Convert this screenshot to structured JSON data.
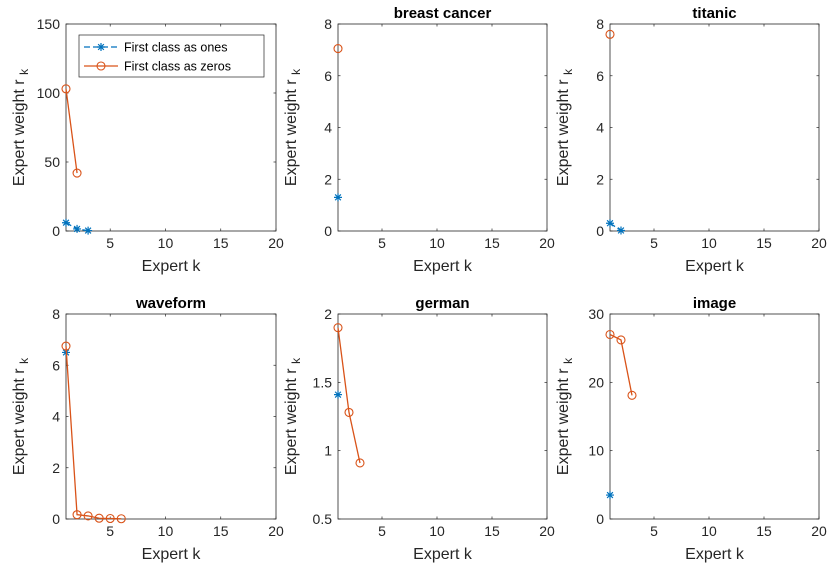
{
  "legend": {
    "entries": [
      {
        "label": "First class as ones",
        "color": "#0072BD",
        "marker": "star",
        "dash": true
      },
      {
        "label": "First class as zeros",
        "color": "#D95319",
        "marker": "circle",
        "dash": false
      }
    ]
  },
  "chart_data": [
    {
      "type": "line",
      "title": "",
      "xlabel": "Expert k",
      "ylabel": "Expert weight r",
      "ylabel_sub": "k",
      "xlim": [
        1,
        20
      ],
      "ylim": [
        0,
        150
      ],
      "xticks": [
        5,
        10,
        15,
        20
      ],
      "yticks": [
        0,
        50,
        100,
        150
      ],
      "series": [
        {
          "name": "First class as ones",
          "x": [
            1,
            2,
            3
          ],
          "y": [
            6,
            1.5,
            0.3
          ]
        },
        {
          "name": "First class as zeros",
          "x": [
            1,
            2
          ],
          "y": [
            103,
            42
          ]
        }
      ]
    },
    {
      "type": "line",
      "title": "breast cancer",
      "xlabel": "Expert k",
      "ylabel": "Expert weight r",
      "ylabel_sub": "k",
      "xlim": [
        1,
        20
      ],
      "ylim": [
        0,
        8
      ],
      "xticks": [
        5,
        10,
        15,
        20
      ],
      "yticks": [
        0,
        2,
        4,
        6,
        8
      ],
      "series": [
        {
          "name": "First class as ones",
          "x": [
            1
          ],
          "y": [
            1.3
          ]
        },
        {
          "name": "First class as zeros",
          "x": [
            1
          ],
          "y": [
            7.05
          ]
        }
      ]
    },
    {
      "type": "line",
      "title": "titanic",
      "xlabel": "Expert k",
      "ylabel": "Expert weight r",
      "ylabel_sub": "k",
      "xlim": [
        1,
        20
      ],
      "ylim": [
        0,
        8
      ],
      "xticks": [
        5,
        10,
        15,
        20
      ],
      "yticks": [
        0,
        2,
        4,
        6,
        8
      ],
      "series": [
        {
          "name": "First class as ones",
          "x": [
            1,
            2
          ],
          "y": [
            0.3,
            0.02
          ]
        },
        {
          "name": "First class as zeros",
          "x": [
            1
          ],
          "y": [
            7.6
          ]
        }
      ]
    },
    {
      "type": "line",
      "title": "waveform",
      "xlabel": "Expert k",
      "ylabel": "Expert weight r",
      "ylabel_sub": "k",
      "xlim": [
        1,
        20
      ],
      "ylim": [
        0,
        8
      ],
      "xticks": [
        5,
        10,
        15,
        20
      ],
      "yticks": [
        0,
        2,
        4,
        6,
        8
      ],
      "series": [
        {
          "name": "First class as ones",
          "x": [
            1
          ],
          "y": [
            6.5
          ]
        },
        {
          "name": "First class as zeros",
          "x": [
            1,
            2,
            3,
            4,
            5,
            6
          ],
          "y": [
            6.75,
            0.17,
            0.12,
            0.03,
            0.02,
            0.01
          ]
        }
      ]
    },
    {
      "type": "line",
      "title": "german",
      "xlabel": "Expert k",
      "ylabel": "Expert weight r",
      "ylabel_sub": "k",
      "xlim": [
        1,
        20
      ],
      "ylim": [
        0.5,
        2
      ],
      "xticks": [
        5,
        10,
        15,
        20
      ],
      "yticks": [
        0.5,
        1,
        1.5,
        2
      ],
      "series": [
        {
          "name": "First class as ones",
          "x": [
            1
          ],
          "y": [
            1.41
          ]
        },
        {
          "name": "First class as zeros",
          "x": [
            1,
            2,
            3
          ],
          "y": [
            1.9,
            1.28,
            0.91
          ]
        }
      ]
    },
    {
      "type": "line",
      "title": "image",
      "xlabel": "Expert k",
      "ylabel": "Expert weight r",
      "ylabel_sub": "k",
      "xlim": [
        1,
        20
      ],
      "ylim": [
        0,
        30
      ],
      "xticks": [
        5,
        10,
        15,
        20
      ],
      "yticks": [
        0,
        10,
        20,
        30
      ],
      "series": [
        {
          "name": "First class as ones",
          "x": [
            1
          ],
          "y": [
            3.5
          ]
        },
        {
          "name": "First class as zeros",
          "x": [
            1,
            2,
            3
          ],
          "y": [
            27,
            26.2,
            18.1
          ]
        }
      ]
    }
  ]
}
